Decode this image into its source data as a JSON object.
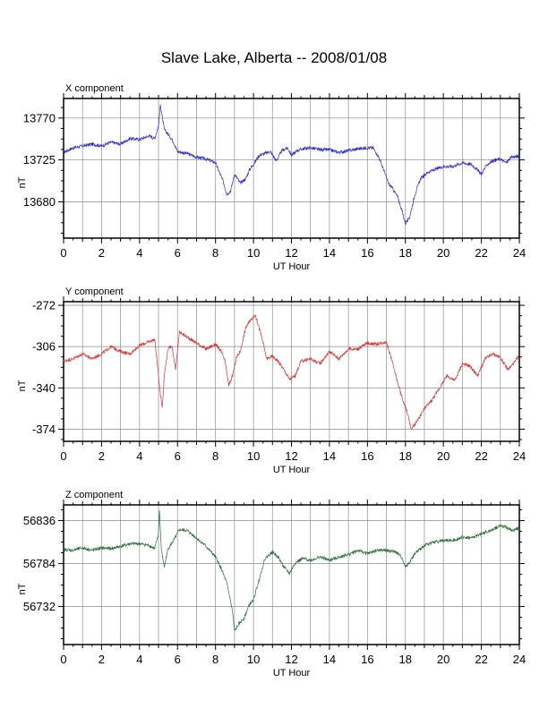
{
  "title": "Slave Lake, Alberta -- 2008/01/08",
  "colors": {
    "x": "#2b2bd9",
    "y": "#e03030",
    "z": "#2e6f3e",
    "grid": "#9a9a9a"
  },
  "chart_data": [
    {
      "type": "line",
      "title": "X component",
      "xlabel": "UT Hour",
      "ylabel": "nT",
      "xlim": [
        0,
        24
      ],
      "ylim": [
        13641,
        13791
      ],
      "xticks": [
        0,
        2,
        4,
        6,
        8,
        10,
        12,
        14,
        16,
        18,
        20,
        22,
        24
      ],
      "yticks": [
        13680,
        13725,
        13770
      ],
      "grid": true,
      "series": [
        {
          "x": [
            0,
            0.5,
            1,
            1.5,
            2,
            2.5,
            3,
            3.5,
            4,
            4.5,
            4.8,
            5.0,
            5.1,
            5.3,
            5.6,
            5.8,
            6.0,
            6.5,
            7,
            7.5,
            8.0,
            8.2,
            8.4,
            8.6,
            8.8,
            9.0,
            9.3,
            9.6,
            9.8,
            10.0,
            10.3,
            10.6,
            10.9,
            11.2,
            11.5,
            11.8,
            12.0,
            12.3,
            12.6,
            13,
            13.5,
            14,
            14.5,
            15,
            15.5,
            16,
            16.3,
            16.6,
            16.9,
            17.1,
            17.3,
            17.6,
            17.8,
            18.0,
            18.2,
            18.5,
            18.8,
            19.2,
            19.6,
            20,
            20.5,
            21,
            21.5,
            21.8,
            22.0,
            22.3,
            22.6,
            23.0,
            23.3,
            23.6,
            24
          ],
          "y": [
            13733,
            13738,
            13740,
            13742,
            13740,
            13744,
            13742,
            13748,
            13747,
            13751,
            13748,
            13762,
            13784,
            13758,
            13750,
            13744,
            13734,
            13732,
            13728,
            13726,
            13722,
            13712,
            13702,
            13688,
            13692,
            13710,
            13700,
            13705,
            13715,
            13720,
            13730,
            13732,
            13734,
            13724,
            13735,
            13738,
            13730,
            13735,
            13737,
            13738,
            13736,
            13736,
            13733,
            13735,
            13737,
            13738,
            13738,
            13728,
            13712,
            13700,
            13695,
            13685,
            13672,
            13657,
            13662,
            13688,
            13705,
            13712,
            13715,
            13718,
            13718,
            13722,
            13720,
            13714,
            13710,
            13720,
            13724,
            13726,
            13722,
            13728,
            13729
          ]
        }
      ]
    },
    {
      "type": "line",
      "title": "Y component",
      "xlabel": "UT Hour",
      "ylabel": "nT",
      "xlim": [
        0,
        24
      ],
      "ylim": [
        -384,
        -269
      ],
      "xticks": [
        0,
        2,
        4,
        6,
        8,
        10,
        12,
        14,
        16,
        18,
        20,
        22,
        24
      ],
      "yticks": [
        -272,
        -306,
        -340,
        -374
      ],
      "grid": true,
      "series": [
        {
          "x": [
            0,
            0.5,
            1,
            1.5,
            2,
            2.5,
            3,
            3.5,
            4,
            4.5,
            4.8,
            5.0,
            5.1,
            5.2,
            5.3,
            5.5,
            5.7,
            5.9,
            6.1,
            6.5,
            7,
            7.5,
            8.0,
            8.3,
            8.5,
            8.7,
            8.9,
            9.1,
            9.3,
            9.6,
            9.9,
            10.1,
            10.4,
            10.7,
            11.0,
            11.3,
            11.6,
            11.9,
            12.2,
            12.5,
            13,
            13.5,
            14,
            14.5,
            15,
            15.5,
            16,
            16.5,
            17,
            17.3,
            17.6,
            17.9,
            18.1,
            18.3,
            18.6,
            19.0,
            19.4,
            19.8,
            20.2,
            20.6,
            21.0,
            21.4,
            21.8,
            22.2,
            22.6,
            23.0,
            23.4,
            23.8,
            24
          ],
          "y": [
            -318,
            -316,
            -312,
            -316,
            -312,
            -306,
            -310,
            -312,
            -305,
            -302,
            -300,
            -330,
            -345,
            -356,
            -330,
            -308,
            -305,
            -325,
            -294,
            -298,
            -303,
            -308,
            -304,
            -310,
            -318,
            -338,
            -330,
            -315,
            -310,
            -290,
            -283,
            -280,
            -296,
            -316,
            -314,
            -318,
            -325,
            -333,
            -330,
            -318,
            -316,
            -320,
            -310,
            -316,
            -308,
            -308,
            -303,
            -304,
            -302,
            -318,
            -336,
            -352,
            -360,
            -374,
            -368,
            -357,
            -350,
            -340,
            -330,
            -334,
            -320,
            -322,
            -330,
            -316,
            -312,
            -315,
            -325,
            -318,
            -313
          ]
        }
      ]
    },
    {
      "type": "line",
      "title": "Z component",
      "xlabel": "UT Hour",
      "ylabel": "nT",
      "xlim": [
        0,
        24
      ],
      "ylim": [
        56686,
        56855
      ],
      "xticks": [
        0,
        2,
        4,
        6,
        8,
        10,
        12,
        14,
        16,
        18,
        20,
        22,
        24
      ],
      "yticks": [
        56732,
        56784,
        56836
      ],
      "grid": true,
      "series": [
        {
          "x": [
            0,
            0.5,
            1,
            1.5,
            2,
            2.5,
            3,
            3.5,
            4,
            4.5,
            4.8,
            5.0,
            5.05,
            5.15,
            5.3,
            5.5,
            5.8,
            6.1,
            6.5,
            7,
            7.5,
            8.0,
            8.3,
            8.6,
            8.8,
            8.9,
            9.0,
            9.2,
            9.5,
            9.8,
            10.0,
            10.3,
            10.6,
            11.0,
            11.3,
            11.6,
            11.9,
            12.2,
            12.6,
            13,
            13.5,
            14,
            14.5,
            15,
            15.5,
            16,
            16.5,
            17,
            17.5,
            17.8,
            18.0,
            18.2,
            18.5,
            19,
            19.5,
            20,
            20.5,
            21,
            21.5,
            22,
            22.5,
            23,
            23.3,
            23.6,
            24
          ],
          "y": [
            56801,
            56800,
            56803,
            56800,
            56803,
            56802,
            56805,
            56808,
            56808,
            56806,
            56802,
            56820,
            56848,
            56800,
            56780,
            56802,
            56812,
            56825,
            56824,
            56815,
            56805,
            56792,
            56778,
            56760,
            56738,
            56725,
            56702,
            56710,
            56718,
            56735,
            56740,
            56765,
            56790,
            56798,
            56792,
            56780,
            56772,
            56785,
            56790,
            56788,
            56792,
            56788,
            56792,
            56795,
            56800,
            56796,
            56800,
            56800,
            56798,
            56792,
            56780,
            56785,
            56796,
            56806,
            56810,
            56812,
            56812,
            56816,
            56815,
            56820,
            56824,
            56830,
            56828,
            56824,
            56827
          ]
        }
      ]
    }
  ]
}
